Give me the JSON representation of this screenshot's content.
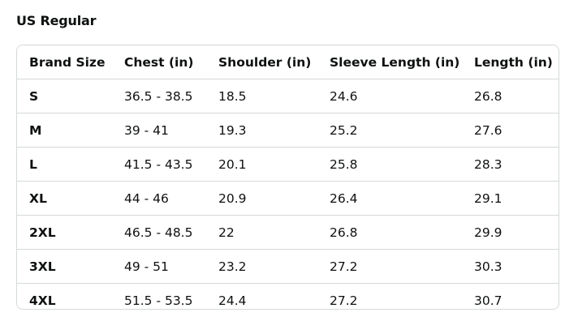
{
  "title": "US Regular",
  "table": {
    "headers": [
      "Brand Size",
      "Chest (in)",
      "Shoulder (in)",
      "Sleeve Length (in)",
      "Length (in)"
    ],
    "rows": [
      [
        "S",
        "36.5 - 38.5",
        "18.5",
        "24.6",
        "26.8"
      ],
      [
        "M",
        "39 - 41",
        "19.3",
        "25.2",
        "27.6"
      ],
      [
        "L",
        "41.5 - 43.5",
        "20.1",
        "25.8",
        "28.3"
      ],
      [
        "XL",
        "44 - 46",
        "20.9",
        "26.4",
        "29.1"
      ],
      [
        "2XL",
        "46.5 - 48.5",
        "22",
        "26.8",
        "29.9"
      ],
      [
        "3XL",
        "49 - 51",
        "23.2",
        "27.2",
        "30.3"
      ],
      [
        "4XL",
        "51.5 - 53.5",
        "24.4",
        "27.2",
        "30.7"
      ]
    ]
  }
}
